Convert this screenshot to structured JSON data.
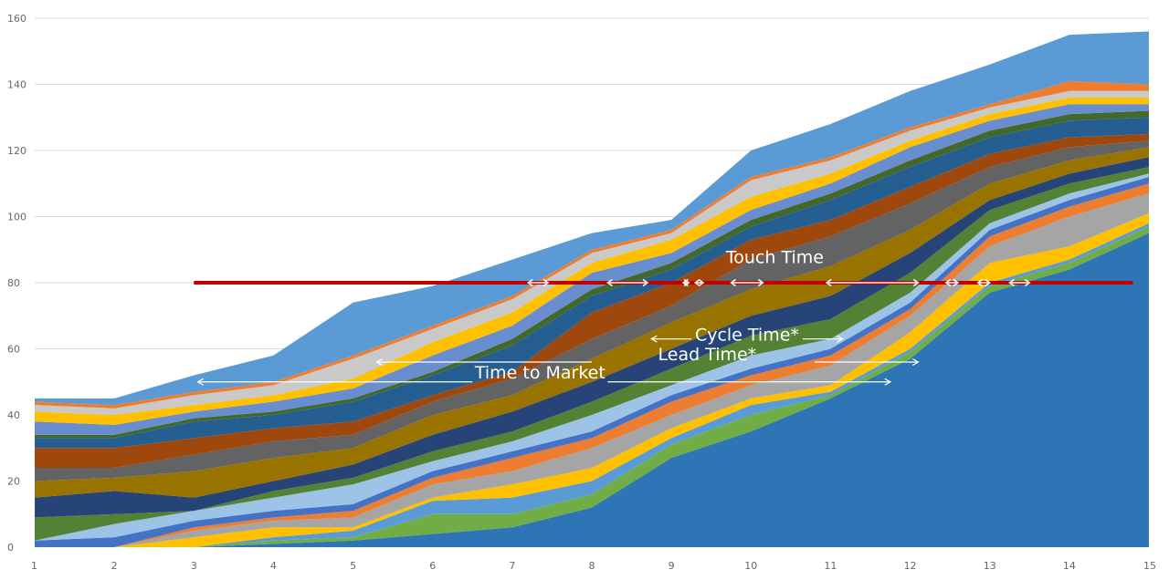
{
  "chart_data": {
    "type": "area",
    "stacked": true,
    "x": [
      1,
      2,
      3,
      4,
      5,
      6,
      7,
      8,
      9,
      10,
      11,
      12,
      13,
      14,
      15
    ],
    "ylim": [
      0,
      160
    ],
    "yticks": [
      0,
      20,
      40,
      60,
      80,
      100,
      120,
      140,
      160
    ],
    "grid": true,
    "legend": "none",
    "series": [
      {
        "color": "#2E75B6",
        "values": [
          0,
          0,
          0,
          1,
          2,
          4,
          6,
          12,
          27,
          35,
          45,
          57,
          77,
          84,
          95
        ]
      },
      {
        "color": "#70AD47",
        "values": [
          0,
          0,
          0,
          1,
          1,
          6,
          4,
          4,
          4,
          5,
          1,
          2,
          2,
          2,
          2
        ]
      },
      {
        "color": "#5B9BD5",
        "values": [
          0,
          0,
          0,
          1,
          2,
          4,
          5,
          4,
          2,
          3,
          1,
          1,
          1,
          1,
          1
        ]
      },
      {
        "color": "#FFC000",
        "values": [
          0,
          0,
          3,
          3,
          1,
          1,
          4,
          4,
          3,
          2,
          2,
          5,
          6,
          4,
          3
        ]
      },
      {
        "color": "#A5A5A5",
        "values": [
          0,
          0,
          2,
          2,
          3,
          4,
          4,
          6,
          4,
          4,
          6,
          5,
          5,
          9,
          6
        ]
      },
      {
        "color": "#ED7D31",
        "values": [
          0,
          0,
          1,
          1,
          2,
          2,
          4,
          3,
          4,
          3,
          3,
          2,
          3,
          3,
          3
        ]
      },
      {
        "color": "#4472C4",
        "values": [
          2,
          3,
          2,
          2,
          2,
          2,
          2,
          2,
          2,
          2,
          2,
          2,
          2,
          2,
          2
        ]
      },
      {
        "color": "#9DC3E6",
        "values": [
          0,
          4,
          3,
          4,
          6,
          3,
          3,
          5,
          3,
          4,
          3,
          3,
          2,
          2,
          1
        ]
      },
      {
        "color": "#548235",
        "values": [
          7,
          3,
          0,
          2,
          2,
          3,
          3,
          4,
          5,
          6,
          6,
          6,
          4,
          3,
          2
        ]
      },
      {
        "color": "#264478",
        "values": [
          6,
          7,
          4,
          3,
          4,
          5,
          6,
          6,
          6,
          6,
          7,
          6,
          3,
          3,
          3
        ]
      },
      {
        "color": "#997300",
        "values": [
          5,
          4,
          8,
          7,
          5,
          6,
          5,
          7,
          8,
          8,
          9,
          7,
          5,
          4,
          3
        ]
      },
      {
        "color": "#636363",
        "values": [
          4,
          3,
          5,
          5,
          4,
          4,
          5,
          6,
          5,
          9,
          9,
          8,
          5,
          4,
          2
        ]
      },
      {
        "color": "#9E480E",
        "values": [
          6,
          6,
          5,
          4,
          4,
          2,
          2,
          8,
          7,
          6,
          5,
          5,
          4,
          3,
          2
        ]
      },
      {
        "color": "#255E91",
        "values": [
          3,
          3,
          5,
          4,
          6,
          6,
          8,
          5,
          4,
          4,
          6,
          6,
          5,
          5,
          5
        ]
      },
      {
        "color": "#43682B",
        "values": [
          1,
          1,
          1,
          1,
          1,
          1,
          2,
          2,
          2,
          2,
          2,
          2,
          2,
          2,
          2
        ]
      },
      {
        "color": "#698ED0",
        "values": [
          4,
          3,
          2,
          3,
          3,
          5,
          4,
          5,
          3,
          3,
          3,
          4,
          3,
          3,
          2
        ]
      },
      {
        "color": "#FFC000",
        "values": [
          3,
          3,
          2,
          2,
          3,
          4,
          4,
          3,
          4,
          4,
          3,
          2,
          2,
          2,
          2
        ]
      },
      {
        "color": "#C9C9C9",
        "values": [
          2,
          2,
          3,
          3,
          6,
          4,
          4,
          3,
          2,
          5,
          4,
          3,
          2,
          2,
          2
        ]
      },
      {
        "color": "#ED7D31",
        "values": [
          1,
          1,
          1,
          1,
          1,
          1,
          1,
          1,
          1,
          1,
          1,
          1,
          1,
          3,
          2
        ]
      },
      {
        "color": "#5B9BD5",
        "values": [
          1,
          2,
          5,
          8,
          16,
          12,
          11,
          5,
          3,
          8,
          10,
          11,
          12,
          14,
          16
        ]
      }
    ],
    "reference_line": {
      "y": 80,
      "x_start": 3,
      "x_end": 14.8,
      "color": "#C00000"
    },
    "annotations": [
      {
        "text": "Touch Time",
        "x": 10.3,
        "y": 86
      },
      {
        "text": "Cycle Time*",
        "x": 9.95,
        "y": 62.5
      },
      {
        "text": "Lead Time*",
        "x": 9.45,
        "y": 56.5
      },
      {
        "text": "Time to Market",
        "x": 7.35,
        "y": 51
      }
    ],
    "spans": [
      {
        "y": 63,
        "x1": 8.75,
        "x2": 9.25
      },
      {
        "y": 63,
        "x1": 10.65,
        "x2": 11.15
      },
      {
        "y": 56,
        "x1": 5.3,
        "x2": 8.0
      },
      {
        "y": 56,
        "x1": 10.8,
        "x2": 12.1
      },
      {
        "y": 50,
        "x1": 3.05,
        "x2": 6.5
      },
      {
        "y": 50,
        "x1": 8.2,
        "x2": 11.75
      }
    ],
    "touch_segments": [
      [
        7.2,
        7.45
      ],
      [
        8.2,
        8.7
      ],
      [
        9.15,
        9.2
      ],
      [
        9.3,
        9.4
      ],
      [
        9.75,
        10.15
      ],
      [
        10.95,
        12.1
      ],
      [
        12.45,
        12.6
      ],
      [
        12.85,
        13.0
      ],
      [
        13.25,
        13.5
      ]
    ]
  }
}
